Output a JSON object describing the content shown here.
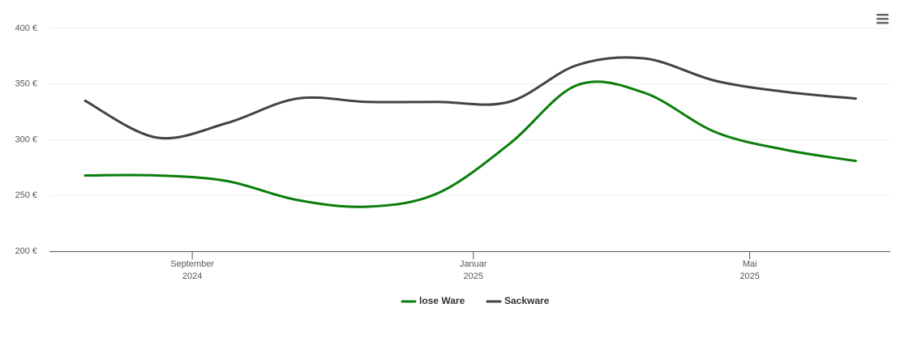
{
  "chart_data": {
    "type": "line",
    "x": [
      "2024-07",
      "2024-08",
      "2024-09",
      "2024-10",
      "2024-11",
      "2024-12",
      "2025-01",
      "2025-02",
      "2025-03",
      "2025-04",
      "2025-05",
      "2025-06"
    ],
    "series": [
      {
        "name": "lose Ware",
        "color": "#0a7d0a",
        "values": [
          268,
          268,
          263,
          246,
          240,
          252,
          296,
          349,
          342,
          307,
          291,
          281
        ]
      },
      {
        "name": "Sackware",
        "color": "#434343",
        "values": [
          335,
          302,
          315,
          337,
          334,
          334,
          334,
          367,
          373,
          353,
          343,
          337
        ]
      }
    ],
    "xlim": [
      "2024-07",
      "2025-06"
    ],
    "xticks": [
      {
        "value": "2024-09",
        "label": [
          "September",
          "2024"
        ]
      },
      {
        "value": "2025-01",
        "label": [
          "Januar",
          "2025"
        ]
      },
      {
        "value": "2025-05",
        "label": [
          "Mai",
          "2025"
        ]
      }
    ],
    "ylim": [
      200,
      400
    ],
    "yticks": [
      {
        "value": 200,
        "label": "200 €"
      },
      {
        "value": 250,
        "label": "250 €"
      },
      {
        "value": 300,
        "label": "300 €"
      },
      {
        "value": 350,
        "label": "350 €"
      },
      {
        "value": 400,
        "label": "400 €"
      }
    ],
    "grid": true,
    "legend": "bottom"
  }
}
